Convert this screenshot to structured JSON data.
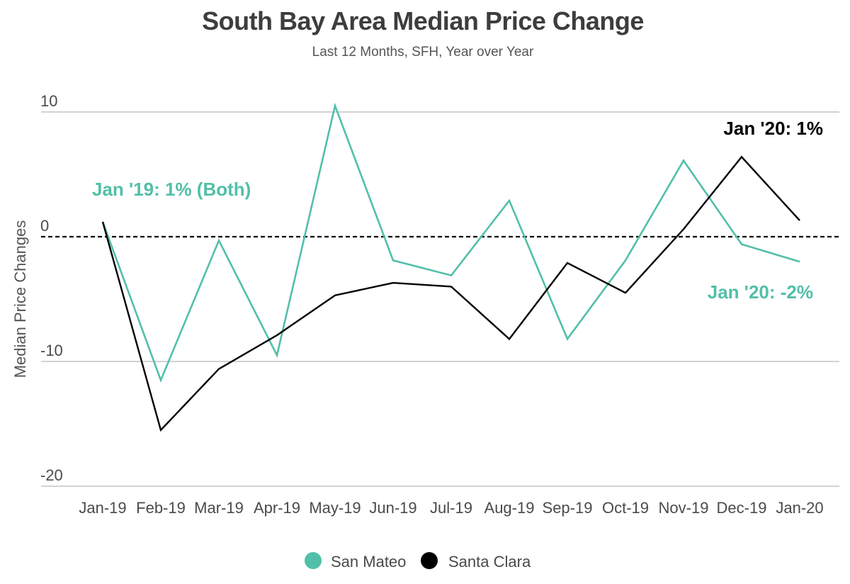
{
  "colors": {
    "san_mateo": "#52bfa9",
    "santa_clara": "#000000",
    "grid": "#b8b8b8"
  },
  "chart_data": {
    "type": "line",
    "title": "South Bay Area Median Price Change",
    "subtitle": "Last 12 Months, SFH, Year over Year",
    "ylabel": "Median Price Changes",
    "xlabel": "",
    "categories": [
      "Jan-19",
      "Feb-19",
      "Mar-19",
      "Apr-19",
      "May-19",
      "Jun-19",
      "Jul-19",
      "Aug-19",
      "Sep-19",
      "Oct-19",
      "Nov-19",
      "Dec-19",
      "Jan-20"
    ],
    "ylim": [
      -20,
      10
    ],
    "yticks": [
      -20,
      -10,
      0,
      10
    ],
    "ytick_labels": [
      "-20",
      "-10",
      "0",
      "10"
    ],
    "grid": true,
    "zero_line": "dashed",
    "legend_position": "bottom",
    "series": [
      {
        "name": "San Mateo",
        "color": "#52bfa9",
        "values": [
          1.2,
          -11.5,
          -0.3,
          -9.5,
          10.5,
          -1.9,
          -3.1,
          2.9,
          -8.2,
          -1.9,
          6.1,
          -0.6,
          -2.0
        ]
      },
      {
        "name": "Santa Clara",
        "color": "#000000",
        "values": [
          1.2,
          -15.5,
          -10.6,
          -7.9,
          -4.7,
          -3.7,
          -4.0,
          -8.2,
          -2.1,
          -4.5,
          0.6,
          6.4,
          1.3
        ]
      }
    ],
    "annotations": [
      {
        "text": "Jan '19: 1% (Both)",
        "color": "#52bfa9"
      },
      {
        "text": "Jan '20: 1%",
        "color": "#000000"
      },
      {
        "text": "Jan '20: -2%",
        "color": "#52bfa9"
      }
    ]
  }
}
